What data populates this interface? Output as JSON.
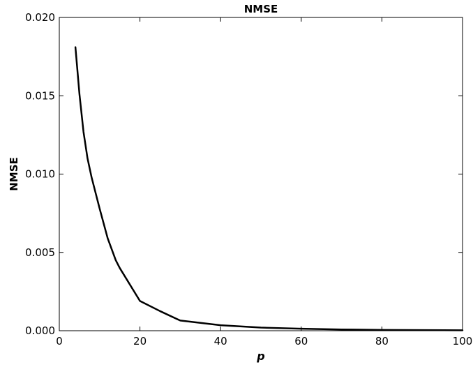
{
  "chart_data": {
    "type": "line",
    "title": "NMSE",
    "xlabel": "p",
    "ylabel": "NMSE",
    "xlim": [
      0,
      100
    ],
    "ylim": [
      0,
      0.02
    ],
    "x_ticks": [
      0,
      20,
      40,
      60,
      80,
      100
    ],
    "x_tick_labels": [
      "0",
      "20",
      "40",
      "60",
      "80",
      "100"
    ],
    "y_ticks": [
      0,
      0.005,
      0.01,
      0.015,
      0.02
    ],
    "y_tick_labels": [
      "0.000",
      "0.005",
      "0.010",
      "0.015",
      "0.020"
    ],
    "grid": false,
    "series": [
      {
        "color": "#000000",
        "x": [
          4,
          5,
          6,
          7,
          8,
          10,
          12,
          14,
          15,
          20,
          25,
          30,
          40,
          50,
          60,
          70,
          80,
          90,
          100
        ],
        "y": [
          0.0181,
          0.0151,
          0.0127,
          0.011,
          0.0098,
          0.0078,
          0.0059,
          0.0045,
          0.004,
          0.0019,
          0.00125,
          0.00065,
          0.00035,
          0.0002,
          0.00013,
          8e-05,
          5e-05,
          4e-05,
          3e-05
        ]
      }
    ]
  }
}
